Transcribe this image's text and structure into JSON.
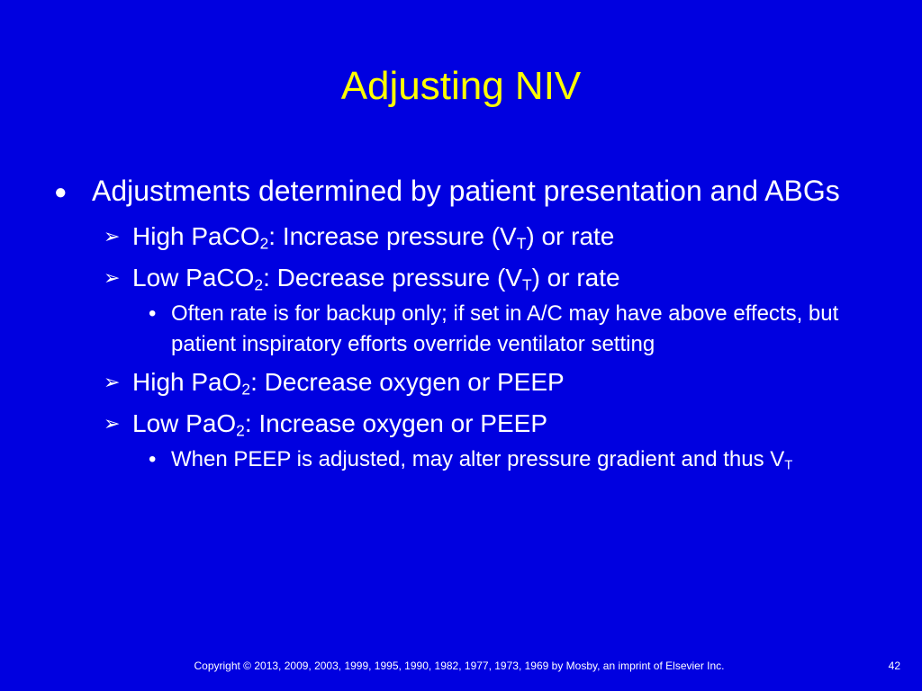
{
  "slide": {
    "title": "Adjusting NIV",
    "bullets": {
      "main": {
        "marker": "●",
        "text": "Adjustments determined by patient presentation and ABGs"
      },
      "sub1": {
        "marker": "➢",
        "pre": "High PaCO",
        "sub_a": "2",
        "mid": ": Increase pressure (V",
        "sub_b": "T",
        "post": ") or rate"
      },
      "sub2": {
        "marker": "➢",
        "pre": "Low PaCO",
        "sub_a": "2",
        "mid": ": Decrease pressure (V",
        "sub_b": "T",
        "post": ") or rate"
      },
      "sub2_note": {
        "marker": "•",
        "text": "Often rate is for backup only; if set in A/C may have above effects, but patient inspiratory efforts override ventilator setting"
      },
      "sub3": {
        "marker": "➢",
        "pre": "High PaO",
        "sub_a": "2",
        "post": ": Decrease oxygen or PEEP"
      },
      "sub4": {
        "marker": "➢",
        "pre": "Low PaO",
        "sub_a": "2",
        "post": ": Increase oxygen or PEEP"
      },
      "sub4_note": {
        "marker": "•",
        "pre": "When PEEP is adjusted, may alter pressure gradient and thus V",
        "sub_a": "T"
      }
    },
    "footer": "Copyright © 2013, 2009, 2003, 1999, 1995, 1990, 1982, 1977, 1973, 1969 by Mosby, an imprint of Elsevier Inc.",
    "page_number": "42",
    "colors": {
      "background": "#0000e0",
      "title": "#ffff00",
      "text": "#ffffff"
    }
  }
}
